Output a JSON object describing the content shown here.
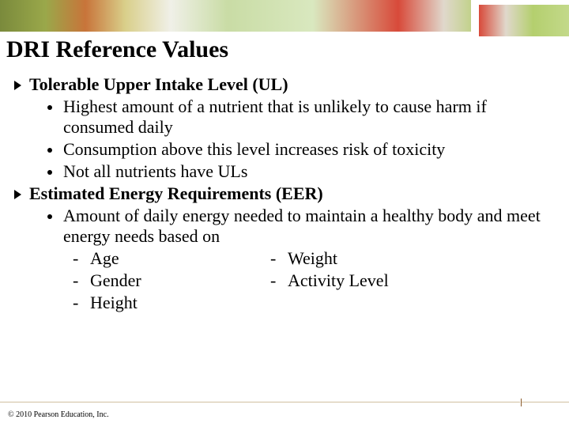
{
  "title": "DRI Reference Values",
  "sections": [
    {
      "heading": "Tolerable Upper Intake Level (UL)",
      "bullets": [
        "Highest amount of a nutrient that is unlikely to cause harm if consumed daily",
        "Consumption above this level increases risk of toxicity",
        "Not all nutrients have ULs"
      ]
    },
    {
      "heading": "Estimated Energy Requirements (EER)",
      "bullets": [
        "Amount of daily energy needed to maintain a healthy body and meet energy needs based on"
      ],
      "dash_left": [
        "Age",
        "Gender",
        "Height"
      ],
      "dash_right": [
        "Weight",
        "Activity Level"
      ]
    }
  ],
  "footer": "© 2010 Pearson Education, Inc.",
  "colors": {
    "text": "#000000",
    "background": "#ffffff",
    "accent_rule": "#d0c0a0",
    "tick": "#8a5a2a"
  },
  "fonts": {
    "family": "Times New Roman",
    "title_size_pt": 30,
    "body_size_pt": 22,
    "footer_size_pt": 10
  }
}
